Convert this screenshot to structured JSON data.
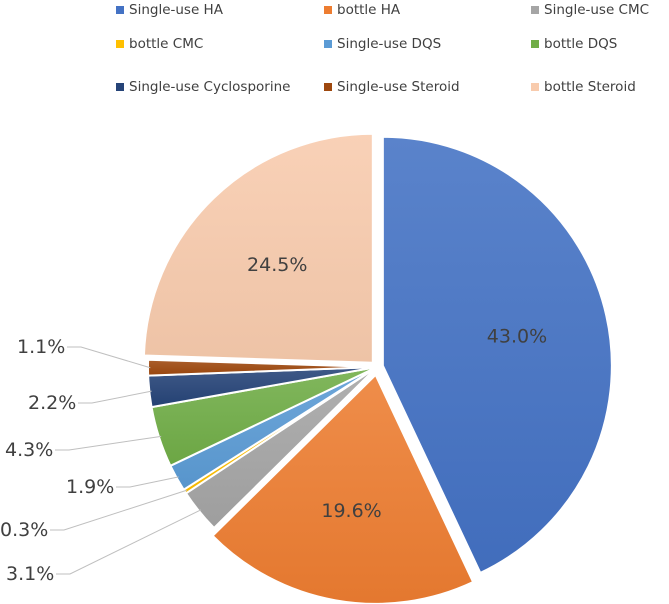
{
  "chart_data": {
    "type": "pie",
    "title": "",
    "legend_position": "top",
    "slices": [
      {
        "name": "Single-use HA",
        "value": 43.0,
        "label": "43.0%",
        "color": "#4472c4"
      },
      {
        "name": "bottle HA",
        "value": 19.6,
        "label": "19.6%",
        "color": "#ed7d31"
      },
      {
        "name": "Single-use CMC",
        "value": 3.1,
        "label": "3.1%",
        "color": "#a5a5a5"
      },
      {
        "name": "bottle CMC",
        "value": 0.3,
        "label": "0.3%",
        "color": "#ffc000"
      },
      {
        "name": "Single-use DQS",
        "value": 1.9,
        "label": "1.9%",
        "color": "#5b9bd5"
      },
      {
        "name": "bottle DQS",
        "value": 4.3,
        "label": "4.3%",
        "color": "#70ad47"
      },
      {
        "name": "Single-use Cyclosporine",
        "value": 2.2,
        "label": "2.2%",
        "color": "#264478"
      },
      {
        "name": "Single-use Steroid",
        "value": 1.1,
        "label": "1.1%",
        "color": "#9e480e"
      },
      {
        "name": "bottle Steroid",
        "value": 24.5,
        "label": "24.5%",
        "color": "#f8cbad"
      }
    ]
  }
}
